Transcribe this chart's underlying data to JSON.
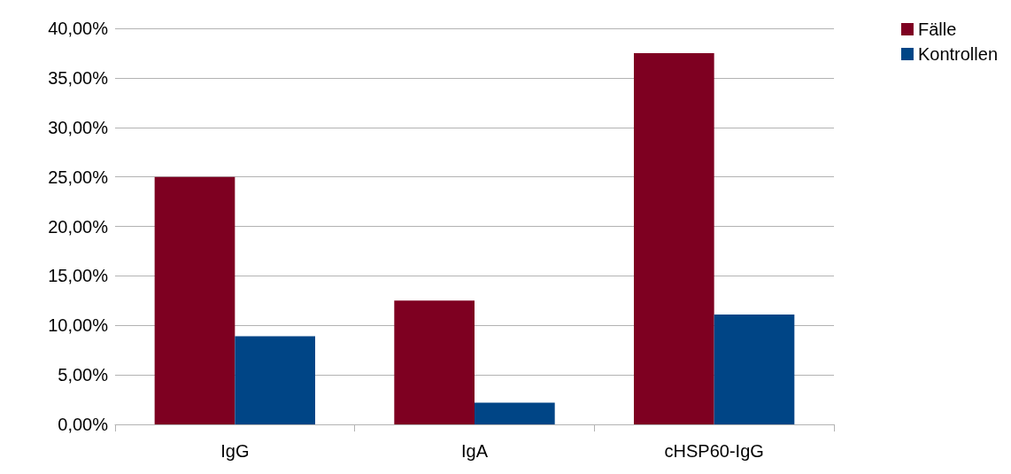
{
  "chart_data": {
    "type": "bar",
    "categories": [
      "IgG",
      "IgA",
      "cHSP60-IgG"
    ],
    "series": [
      {
        "name": "Fälle",
        "color": "#7e0021",
        "values": [
          25,
          12.5,
          37.5
        ]
      },
      {
        "name": "Kontrollen",
        "color": "#004586",
        "values": [
          8.9,
          2.2,
          11.1
        ]
      }
    ],
    "ylim": [
      0,
      40
    ],
    "yticks": [
      {
        "value": 0,
        "label": "0,00%"
      },
      {
        "value": 5,
        "label": "5,00%"
      },
      {
        "value": 10,
        "label": "10,00%"
      },
      {
        "value": 15,
        "label": "15,00%"
      },
      {
        "value": 20,
        "label": "20,00%"
      },
      {
        "value": 25,
        "label": "25,00%"
      },
      {
        "value": 30,
        "label": "30,00%"
      },
      {
        "value": 35,
        "label": "35,00%"
      },
      {
        "value": 40,
        "label": "40,00%"
      }
    ],
    "grid": "y",
    "legend": "right"
  }
}
